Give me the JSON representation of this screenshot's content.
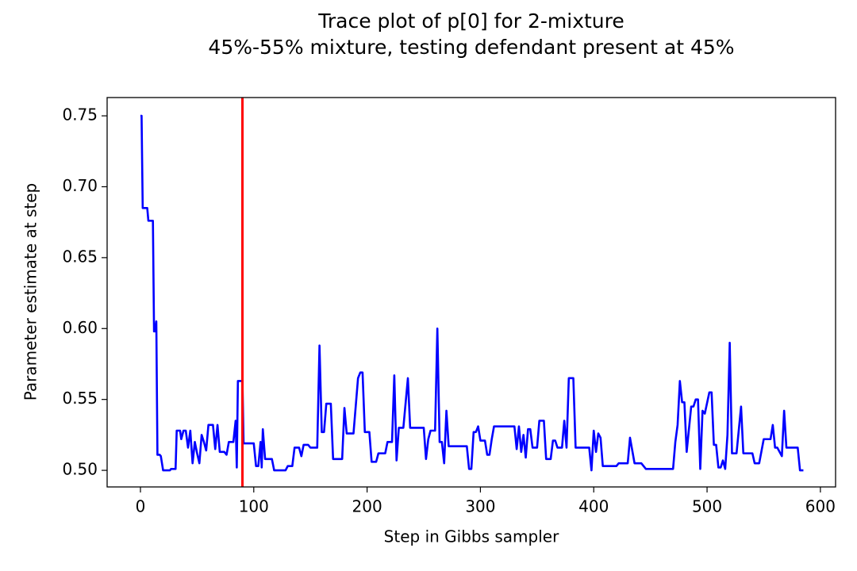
{
  "chart_data": {
    "type": "line",
    "title": "Trace plot of p[0] for 2-mixture",
    "subtitle": "45%-55% mixture, testing defendant present at 45%",
    "x_label": "Step in Gibbs sampler",
    "y_label": "Parameter estimate at step",
    "x": [
      0,
      1,
      2,
      6,
      7,
      11,
      12,
      13,
      14,
      15,
      17,
      18,
      20,
      26,
      27,
      31,
      32,
      35,
      36,
      38,
      40,
      42,
      44,
      46,
      48,
      50,
      52,
      54,
      56,
      58,
      60,
      64,
      66,
      68,
      70,
      74,
      76,
      78,
      82,
      84,
      85,
      86,
      90,
      91,
      100,
      102,
      104,
      106,
      107,
      108,
      110,
      116,
      118,
      128,
      130,
      134,
      136,
      140,
      142,
      144,
      148,
      150,
      156,
      158,
      160,
      162,
      164,
      168,
      170,
      178,
      180,
      182,
      188,
      192,
      194,
      196,
      198,
      202,
      204,
      208,
      210,
      216,
      218,
      222,
      224,
      226,
      228,
      232,
      236,
      238,
      250,
      252,
      254,
      256,
      260,
      262,
      264,
      266,
      268,
      270,
      272,
      288,
      290,
      292,
      294,
      296,
      298,
      300,
      304,
      306,
      308,
      310,
      312,
      330,
      332,
      334,
      336,
      338,
      340,
      342,
      344,
      346,
      350,
      352,
      356,
      358,
      362,
      364,
      366,
      368,
      372,
      374,
      376,
      378,
      382,
      384,
      396,
      398,
      400,
      402,
      404,
      406,
      408,
      420,
      422,
      430,
      432,
      436,
      442,
      446,
      470,
      472,
      474,
      476,
      478,
      480,
      482,
      486,
      488,
      490,
      492,
      494,
      496,
      498,
      502,
      504,
      506,
      508,
      510,
      512,
      514,
      516,
      518,
      520,
      522,
      526,
      530,
      532,
      540,
      542,
      546,
      550,
      556,
      558,
      560,
      562,
      566,
      568,
      570,
      580,
      582,
      585
    ],
    "series": [
      {
        "color": "#0000ff",
        "values": [
          0.75,
          0.75,
          0.685,
          0.685,
          0.676,
          0.676,
          0.598,
          0.598,
          0.605,
          0.511,
          0.511,
          0.51,
          0.5,
          0.5,
          0.501,
          0.501,
          0.528,
          0.528,
          0.522,
          0.528,
          0.528,
          0.516,
          0.528,
          0.505,
          0.52,
          0.512,
          0.505,
          0.525,
          0.52,
          0.514,
          0.532,
          0.532,
          0.515,
          0.532,
          0.513,
          0.513,
          0.511,
          0.52,
          0.52,
          0.535,
          0.502,
          0.563,
          0.563,
          0.519,
          0.519,
          0.503,
          0.503,
          0.52,
          0.502,
          0.529,
          0.508,
          0.508,
          0.5,
          0.5,
          0.503,
          0.503,
          0.516,
          0.516,
          0.51,
          0.518,
          0.518,
          0.516,
          0.516,
          0.588,
          0.527,
          0.527,
          0.547,
          0.547,
          0.508,
          0.508,
          0.544,
          0.526,
          0.526,
          0.565,
          0.569,
          0.569,
          0.527,
          0.527,
          0.506,
          0.506,
          0.512,
          0.512,
          0.52,
          0.52,
          0.567,
          0.507,
          0.53,
          0.53,
          0.565,
          0.53,
          0.53,
          0.508,
          0.522,
          0.528,
          0.528,
          0.6,
          0.52,
          0.52,
          0.505,
          0.542,
          0.517,
          0.517,
          0.501,
          0.501,
          0.527,
          0.527,
          0.531,
          0.521,
          0.521,
          0.511,
          0.511,
          0.522,
          0.531,
          0.531,
          0.515,
          0.531,
          0.513,
          0.525,
          0.509,
          0.529,
          0.529,
          0.516,
          0.516,
          0.535,
          0.535,
          0.508,
          0.508,
          0.521,
          0.521,
          0.516,
          0.516,
          0.535,
          0.516,
          0.565,
          0.565,
          0.516,
          0.516,
          0.5,
          0.528,
          0.513,
          0.526,
          0.523,
          0.503,
          0.503,
          0.505,
          0.505,
          0.523,
          0.505,
          0.505,
          0.501,
          0.501,
          0.52,
          0.532,
          0.563,
          0.548,
          0.548,
          0.513,
          0.545,
          0.545,
          0.55,
          0.55,
          0.501,
          0.542,
          0.54,
          0.555,
          0.555,
          0.518,
          0.518,
          0.502,
          0.502,
          0.507,
          0.501,
          0.525,
          0.59,
          0.512,
          0.512,
          0.545,
          0.512,
          0.512,
          0.505,
          0.505,
          0.522,
          0.522,
          0.532,
          0.516,
          0.516,
          0.51,
          0.542,
          0.516,
          0.516,
          0.5,
          0.5
        ]
      }
    ],
    "vline": 90,
    "vline_color": "#ff0000",
    "xlim": [
      -29.4,
      613.4
    ],
    "ylim": [
      0.4883,
      0.7629
    ],
    "xticks": [
      0,
      100,
      200,
      300,
      400,
      500,
      600
    ],
    "yticks": [
      {
        "value": 0.5,
        "label": "0.50"
      },
      0.55,
      {
        "value": 0.6,
        "label": "0.60"
      },
      0.65,
      {
        "value": 0.7,
        "label": "0.70"
      },
      0.75
    ]
  }
}
